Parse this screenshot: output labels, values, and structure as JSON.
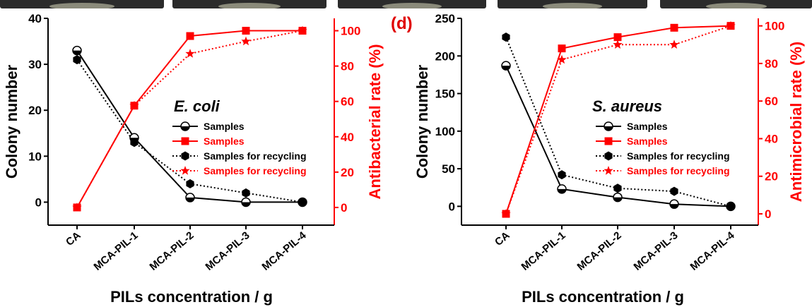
{
  "panel_label": "(d)",
  "chart_data": [
    {
      "type": "line",
      "annotation": "E. coli",
      "xlabel": "PILs concentration / g",
      "ylabel_left": "Colony number",
      "ylabel_right": "Antibacterial rate (%)",
      "categories": [
        "CA",
        "MCA-PIL-1",
        "MCA-PIL-2",
        "MCA-PIL-3",
        "MCA-PIL-4"
      ],
      "y_left_ticks": [
        0,
        10,
        20,
        30,
        40
      ],
      "y_right_ticks": [
        0,
        20,
        40,
        60,
        80,
        100
      ],
      "y_left_range": [
        -5,
        40
      ],
      "y_right_range": [
        -10,
        107
      ],
      "grid": false,
      "legend_placement": "center-right",
      "series": [
        {
          "name": "Samples",
          "axis": "left",
          "marker": "half-circle",
          "line": "solid",
          "color": "#000000",
          "values": [
            33,
            14,
            1,
            0,
            0
          ]
        },
        {
          "name": "Samples",
          "axis": "right",
          "marker": "square",
          "line": "solid",
          "color": "#ff0000",
          "values": [
            0,
            57.6,
            97,
            100,
            100
          ]
        },
        {
          "name": "Samples for recycling",
          "axis": "left",
          "marker": "hexagon",
          "line": "dotted",
          "color": "#000000",
          "values": [
            31,
            13,
            4,
            2,
            0
          ]
        },
        {
          "name": "Samples for recycling",
          "axis": "right",
          "marker": "star",
          "line": "dotted",
          "color": "#ff0000",
          "values": [
            0,
            57.6,
            87,
            94,
            100
          ]
        }
      ]
    },
    {
      "type": "line",
      "annotation": "S. aureus",
      "xlabel": "PILs concentration / g",
      "ylabel_left": "Colony number",
      "ylabel_right": "Antimicrobial rate (%)",
      "categories": [
        "CA",
        "MCA-PIL-1",
        "MCA-PIL-2",
        "MCA-PIL-3",
        "MCA-PIL-4"
      ],
      "y_left_ticks": [
        0,
        50,
        100,
        150,
        200,
        250
      ],
      "y_right_ticks": [
        0,
        20,
        40,
        60,
        80,
        100
      ],
      "y_left_range": [
        -25,
        250
      ],
      "y_right_range": [
        -6,
        104
      ],
      "grid": false,
      "legend_placement": "center-right",
      "series": [
        {
          "name": "Samples",
          "axis": "left",
          "marker": "half-circle",
          "line": "solid",
          "color": "#000000",
          "values": [
            187,
            23,
            12,
            3,
            0
          ]
        },
        {
          "name": "Samples",
          "axis": "right",
          "marker": "square",
          "line": "solid",
          "color": "#ff0000",
          "values": [
            0,
            88,
            94,
            99,
            100
          ]
        },
        {
          "name": "Samples for recycling",
          "axis": "left",
          "marker": "hexagon",
          "line": "dotted",
          "color": "#000000",
          "values": [
            225,
            42,
            24,
            20,
            0
          ]
        },
        {
          "name": "Samples for recycling",
          "axis": "right",
          "marker": "star",
          "line": "dotted",
          "color": "#ff0000",
          "values": [
            0,
            82,
            90,
            90,
            100
          ]
        }
      ]
    }
  ]
}
